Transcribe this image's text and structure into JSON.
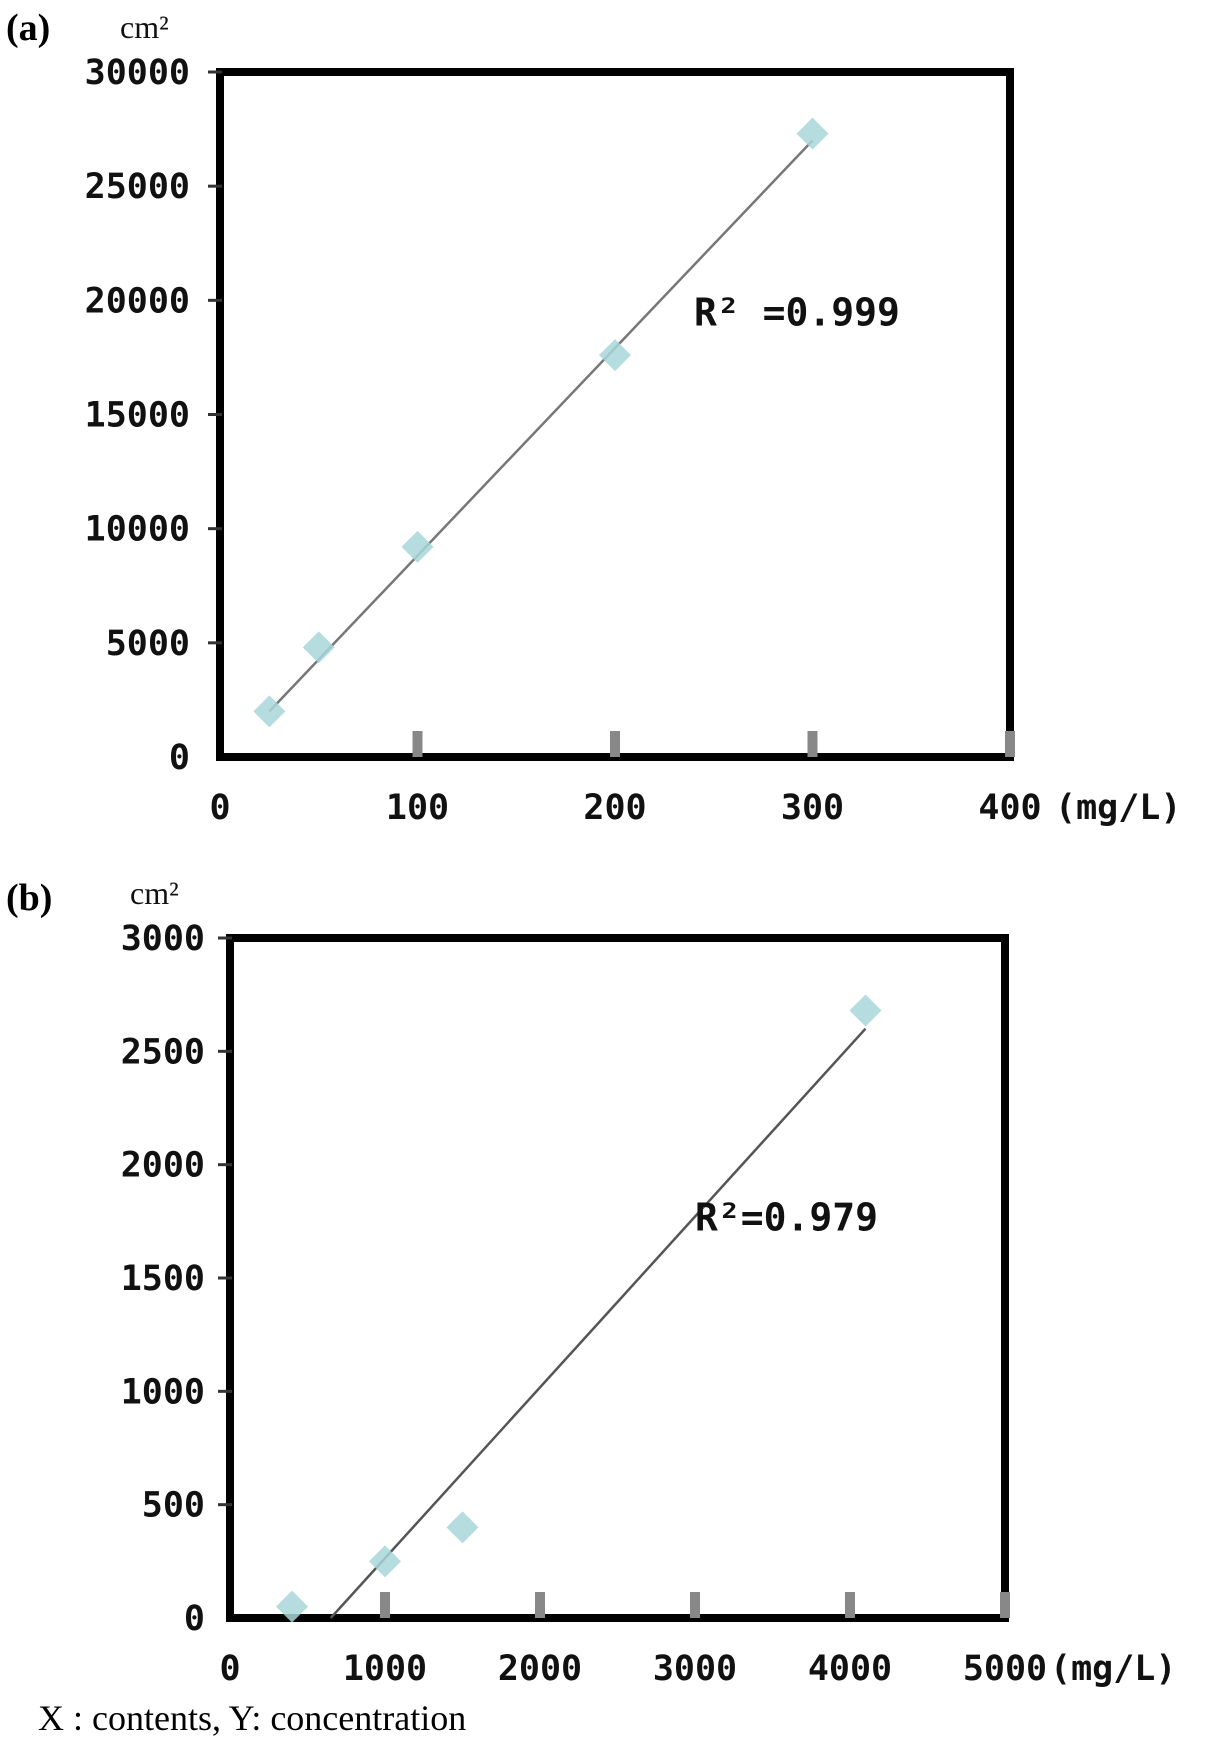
{
  "chart_data": [
    {
      "panel_label": "(a)",
      "type": "scatter",
      "ylabel": "cm²",
      "xlabel": "400 (mg/L)",
      "x_unit": "(mg/L)",
      "xlim": [
        0,
        400
      ],
      "ylim": [
        0,
        30000
      ],
      "x_ticks": [
        "0",
        "100",
        "200",
        "300",
        "400"
      ],
      "y_ticks": [
        "0",
        "5000",
        "10000",
        "15000",
        "20000",
        "25000",
        "30000"
      ],
      "points": [
        {
          "x": 25,
          "y": 2000
        },
        {
          "x": 50,
          "y": 4800
        },
        {
          "x": 100,
          "y": 9200
        },
        {
          "x": 200,
          "y": 17600
        },
        {
          "x": 300,
          "y": 27300
        }
      ],
      "trendline": {
        "x": [
          25,
          300
        ],
        "y": [
          2000,
          27000
        ]
      },
      "annotation": "R² =0.999",
      "marker_color": "#a8d6d8",
      "line_color": "#777777"
    },
    {
      "panel_label": "(b)",
      "type": "scatter",
      "ylabel": "cm²",
      "x_unit": "(mg/L)",
      "xlim": [
        0,
        5000
      ],
      "ylim": [
        0,
        3000
      ],
      "x_ticks": [
        "0",
        "1000",
        "2000",
        "3000",
        "4000",
        "5000"
      ],
      "y_ticks": [
        "0",
        "500",
        "1000",
        "1500",
        "2000",
        "2500",
        "3000"
      ],
      "points": [
        {
          "x": 400,
          "y": 50
        },
        {
          "x": 1000,
          "y": 250
        },
        {
          "x": 1500,
          "y": 400
        },
        {
          "x": 4100,
          "y": 2680
        }
      ],
      "trendline": {
        "x": [
          650,
          4100
        ],
        "y": [
          0,
          2600
        ]
      },
      "annotation": "R²=0.979",
      "marker_color": "#a8d6d8",
      "line_color": "#555555"
    }
  ],
  "caption": "X : contents, Y: concentration"
}
